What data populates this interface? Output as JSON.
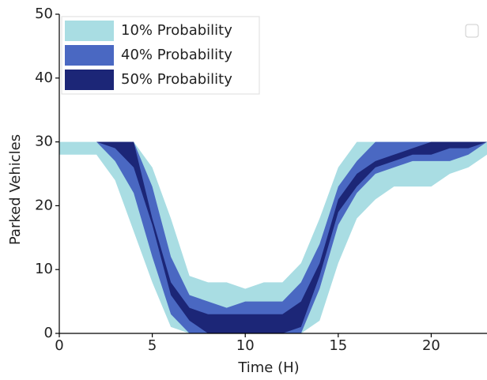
{
  "chart_data": {
    "type": "band",
    "x_label": "Time (H)",
    "y_label": "Parked Vehicles",
    "x": [
      0,
      1,
      2,
      3,
      4,
      5,
      6,
      7,
      8,
      9,
      10,
      11,
      12,
      13,
      14,
      15,
      16,
      17,
      18,
      19,
      20,
      21,
      22,
      23
    ],
    "xlim": [
      0,
      23
    ],
    "xticks": [
      0,
      5,
      10,
      15,
      20
    ],
    "ylim": [
      0,
      50
    ],
    "yticks": [
      0,
      10,
      20,
      30,
      40,
      50
    ],
    "legend": "upper left",
    "series": [
      {
        "name": "10% Probability",
        "color": "#a9dde3",
        "upper": [
          30,
          30,
          30,
          30,
          30,
          26,
          18,
          9,
          8,
          8,
          7,
          8,
          8,
          11,
          18,
          26,
          30,
          30,
          30,
          30,
          30,
          30,
          30,
          30
        ],
        "lower": [
          28,
          28,
          28,
          24,
          16,
          8,
          1,
          0,
          0,
          0,
          0,
          0,
          0,
          0,
          2,
          11,
          18,
          21,
          23,
          23,
          23,
          25,
          26,
          28
        ]
      },
      {
        "name": "40% Probability",
        "color": "#4a68c2",
        "upper": [
          30,
          30,
          30,
          30,
          30,
          23,
          12,
          6,
          5,
          4,
          5,
          5,
          5,
          8,
          14,
          23,
          27,
          30,
          30,
          30,
          30,
          30,
          30,
          30
        ],
        "lower": [
          30,
          30,
          30,
          27,
          22,
          12,
          3,
          0,
          0,
          0,
          0,
          0,
          0,
          0,
          7,
          17,
          22,
          25,
          26,
          27,
          27,
          27,
          28,
          30
        ]
      },
      {
        "name": "50% Probability",
        "color": "#1c2677",
        "upper": [
          30,
          30,
          30,
          30,
          30,
          18,
          8,
          4,
          3,
          3,
          3,
          3,
          3,
          5,
          11,
          21,
          25,
          27,
          28,
          29,
          30,
          30,
          30,
          30
        ],
        "lower": [
          30,
          30,
          30,
          29,
          26,
          17,
          6,
          2,
          0,
          0,
          0,
          0,
          0,
          1,
          9,
          19,
          23,
          26,
          27,
          28,
          28,
          29,
          29,
          30
        ]
      }
    ]
  }
}
